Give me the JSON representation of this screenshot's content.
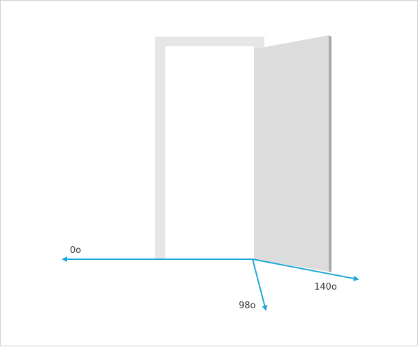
{
  "colors": {
    "arrow": "#1ba7d6",
    "frame": "#e6e6e6",
    "door": "#dcdcdc",
    "door_edge": "#a9a9a9",
    "opening": "#ffffff"
  },
  "angles": [
    {
      "label": "0o",
      "degrees": 0
    },
    {
      "label": "98o",
      "degrees": 98
    },
    {
      "label": "140o",
      "degrees": 140
    }
  ]
}
